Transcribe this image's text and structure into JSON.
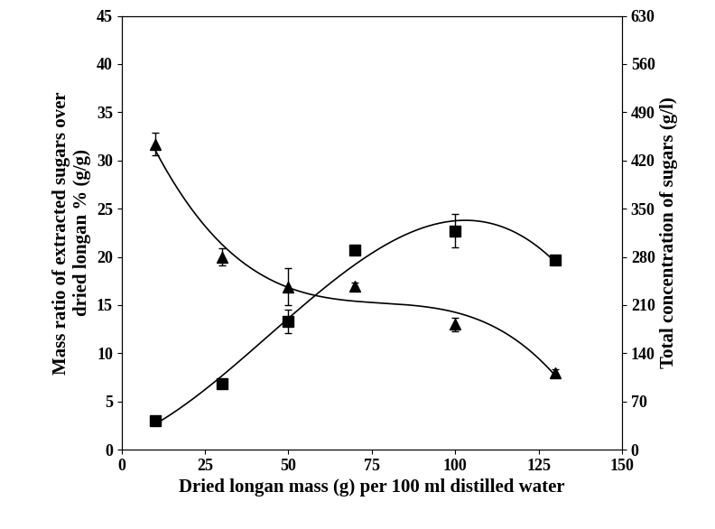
{
  "chart_data": {
    "type": "scatter",
    "x_label": "Dried longan mass (g) per 100 ml distilled water",
    "y_label": "Mass ratio of extracted sugars over\ndried longan % (g/g)",
    "y2_label": "Total concentration of sugars (g/l)",
    "xlim": [
      0,
      150
    ],
    "xticks": [
      0,
      25,
      50,
      75,
      100,
      125,
      150
    ],
    "ylim": [
      0,
      45
    ],
    "yticks": [
      0,
      5,
      10,
      15,
      20,
      25,
      30,
      35,
      40,
      45
    ],
    "y2lim": [
      0,
      630
    ],
    "y2ticks": [
      0,
      70,
      140,
      210,
      280,
      350,
      420,
      490,
      560,
      630
    ],
    "grid": false,
    "series": [
      {
        "color": "#000000",
        "marker": "triangle",
        "line_style": "solid",
        "axis": "y",
        "x": [
          10,
          30,
          50,
          70,
          100,
          130
        ],
        "values": [
          31.7,
          20.0,
          16.9,
          17.0,
          13.0,
          8.0
        ],
        "error": [
          1.2,
          0.9,
          1.9,
          0.3,
          0.7,
          0.3
        ]
      },
      {
        "color": "#000000",
        "marker": "square",
        "line_style": "solid",
        "axis": "y2",
        "x": [
          10,
          30,
          50,
          70,
          100,
          130
        ],
        "values": [
          42,
          96,
          186,
          290,
          318,
          276
        ],
        "error": [
          3,
          3,
          17,
          4,
          24,
          4
        ]
      }
    ]
  }
}
